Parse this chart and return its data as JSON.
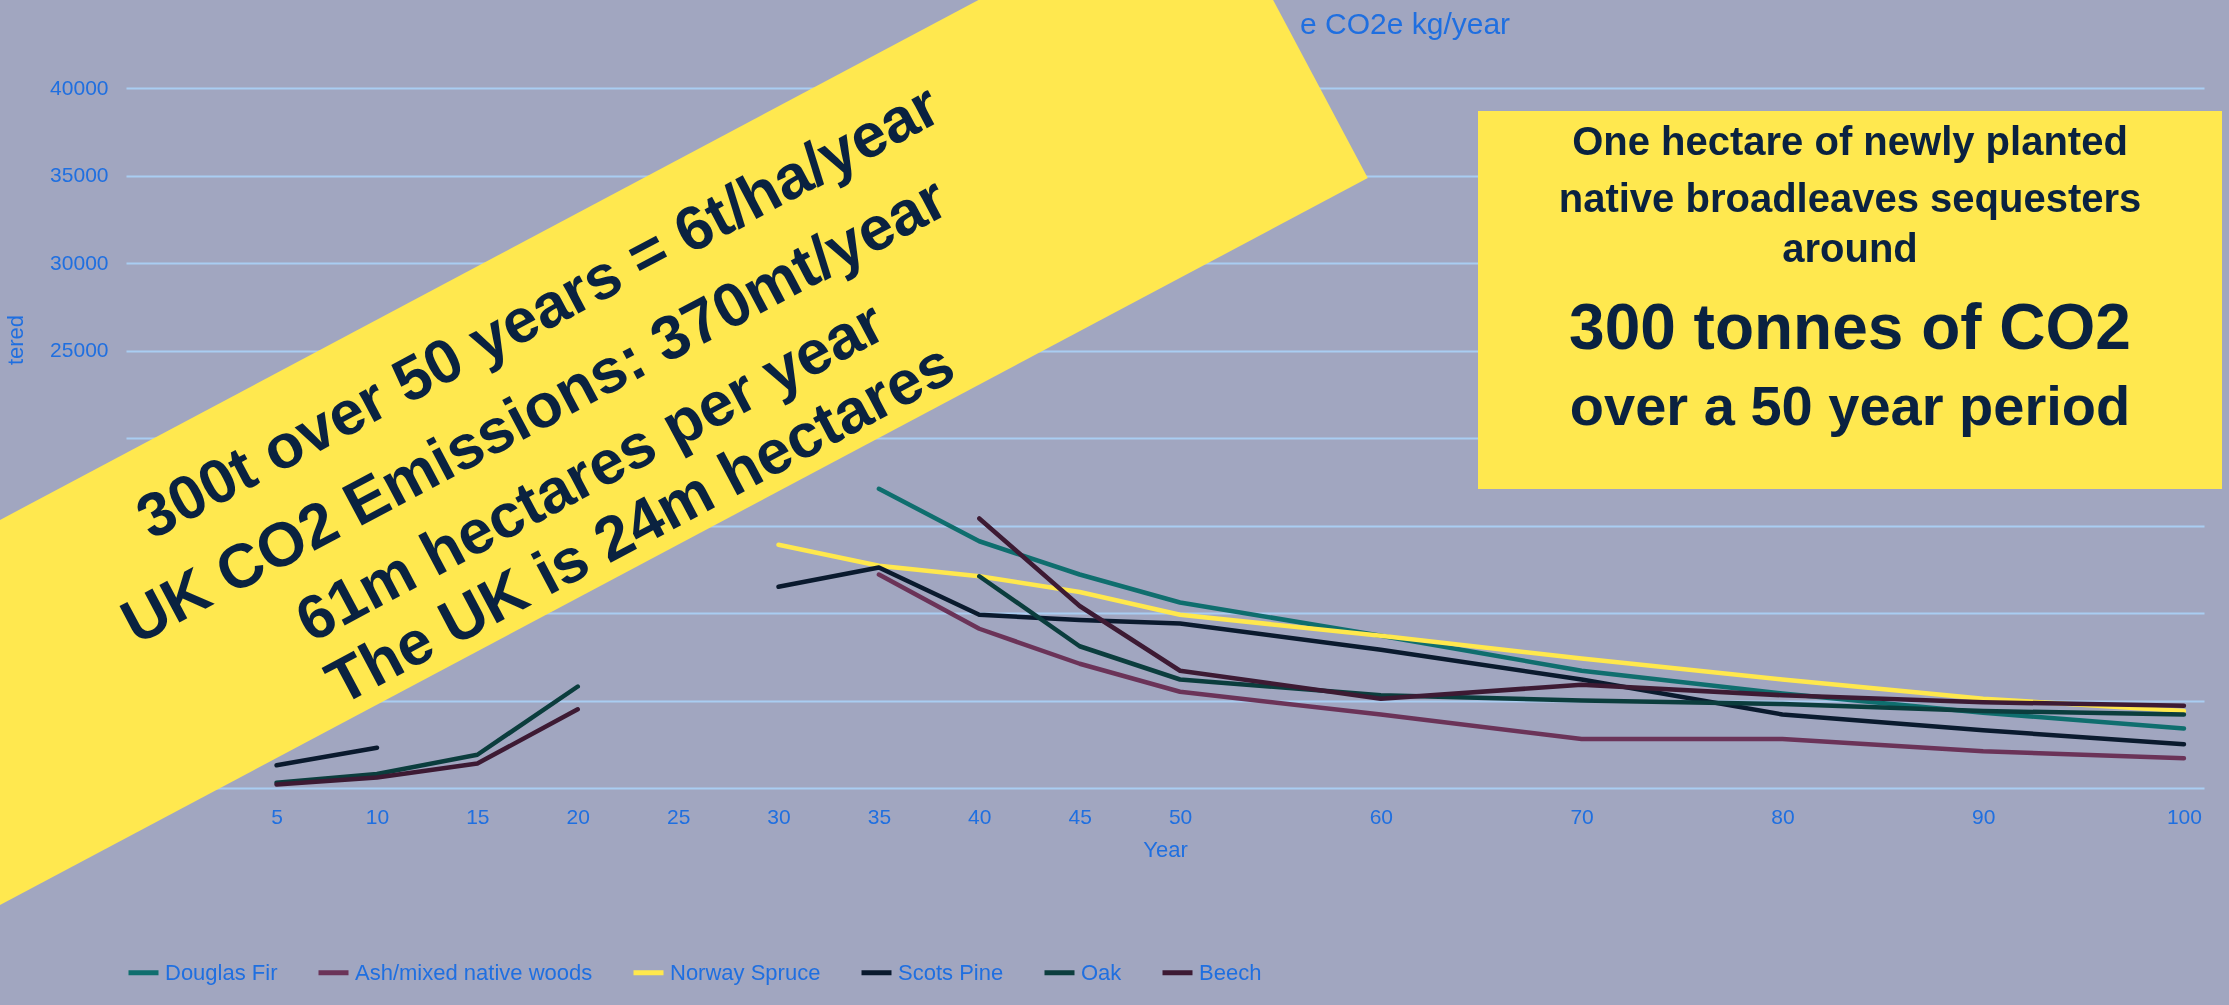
{
  "chart_data": {
    "type": "line",
    "title": "e CO2e kg/year",
    "ylabel": "tered",
    "xlabel": "Year",
    "x": [
      5,
      10,
      15,
      20,
      25,
      30,
      35,
      40,
      45,
      50,
      60,
      70,
      80,
      90,
      100
    ],
    "series": [
      {
        "name": "Douglas Fir",
        "color": "#0f6e6e",
        "values": [
          null,
          null,
          null,
          null,
          null,
          null,
          17100,
          14100,
          12200,
          10600,
          8700,
          6700,
          5400,
          4300,
          3400
        ]
      },
      {
        "name": "Ash/mixed native woods",
        "color": "#6b3358",
        "values": [
          null,
          null,
          null,
          null,
          null,
          null,
          12200,
          9100,
          7100,
          5500,
          4200,
          2800,
          2800,
          2100,
          1700
        ]
      },
      {
        "name": "Norway Spruce",
        "color": "#ffe84d",
        "values": [
          null,
          null,
          null,
          null,
          null,
          13900,
          12700,
          12100,
          11200,
          9900,
          8700,
          7400,
          6200,
          5100,
          4400
        ]
      },
      {
        "name": "Scots Pine",
        "color": "#0a1a2e",
        "values": [
          1300,
          2300,
          null,
          null,
          null,
          11500,
          12600,
          9900,
          9600,
          9400,
          7900,
          6200,
          4200,
          3300,
          2500
        ]
      },
      {
        "name": "Oak",
        "color": "#0b3d3d",
        "values": [
          300,
          800,
          1900,
          5800,
          null,
          null,
          null,
          12100,
          8100,
          6200,
          5300,
          5000,
          4800,
          4400,
          4200
        ]
      },
      {
        "name": "Beech",
        "color": "#3d1a33",
        "values": [
          200,
          600,
          1400,
          4500,
          null,
          null,
          null,
          15400,
          10400,
          6700,
          5100,
          5900,
          5300,
          4900,
          4700
        ]
      }
    ],
    "xlim": [
      -2.5,
      101
    ],
    "xticks": [
      5,
      10,
      15,
      20,
      25,
      30,
      35,
      40,
      45,
      50,
      60,
      70,
      80,
      90,
      100
    ],
    "ylim": [
      0,
      40000
    ],
    "yticks": [
      {
        "value": 0,
        "label": null
      },
      {
        "value": 5000,
        "label": null
      },
      {
        "value": 10000,
        "label": null
      },
      {
        "value": 15000,
        "label": null
      },
      {
        "value": 20000,
        "label": null
      },
      25000,
      30000,
      35000,
      40000
    ],
    "grid": "y",
    "legend": "bottom",
    "line_style": "solid",
    "marker": "none",
    "annotations": [
      "300t over 50 years = 6t/ha/year",
      "UK CO2 Emissions: 370mt/year",
      "61m hectares per year",
      "The UK is 24m hectares",
      "One hectare of newly planted",
      "native broadleaves sequesters",
      "around",
      "300 tonnes of CO2",
      "over a 50 year period"
    ]
  }
}
